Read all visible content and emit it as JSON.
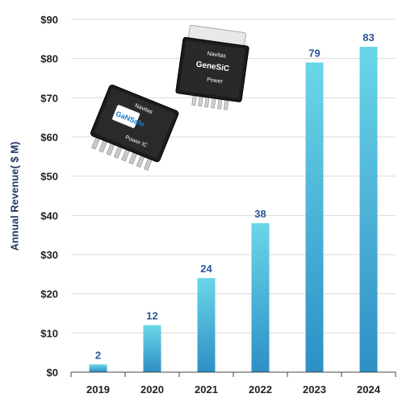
{
  "chart_data": {
    "type": "bar",
    "categories": [
      "2019",
      "2020",
      "2021",
      "2022",
      "2023",
      "2024"
    ],
    "values": [
      2,
      12,
      24,
      38,
      79,
      83
    ],
    "data_labels": [
      "2",
      "12",
      "24",
      "38",
      "79",
      "83"
    ],
    "ylabel": "Annual Revenue( $ M)",
    "xlabel": "",
    "ylim": [
      0,
      90
    ],
    "yticks": [
      0,
      10,
      20,
      30,
      40,
      50,
      60,
      70,
      80,
      90
    ],
    "ytick_labels": [
      "$0",
      "$10",
      "$20",
      "$30",
      "$40",
      "$50",
      "$60",
      "$70",
      "$80",
      "$90"
    ],
    "grid": true,
    "colors": {
      "bar_top": "#6ad6e8",
      "bar_bottom": "#2e8fc5",
      "label": "#2e5597",
      "axis_text": "#222222",
      "grid": "#d9d9d9"
    }
  },
  "chips": {
    "gansafe": {
      "brand": "Navitas",
      "product": "GaNSafe",
      "type": "Power IC"
    },
    "genesic": {
      "brand": "Navitas",
      "product": "GeneSiC",
      "type": "Power"
    }
  }
}
